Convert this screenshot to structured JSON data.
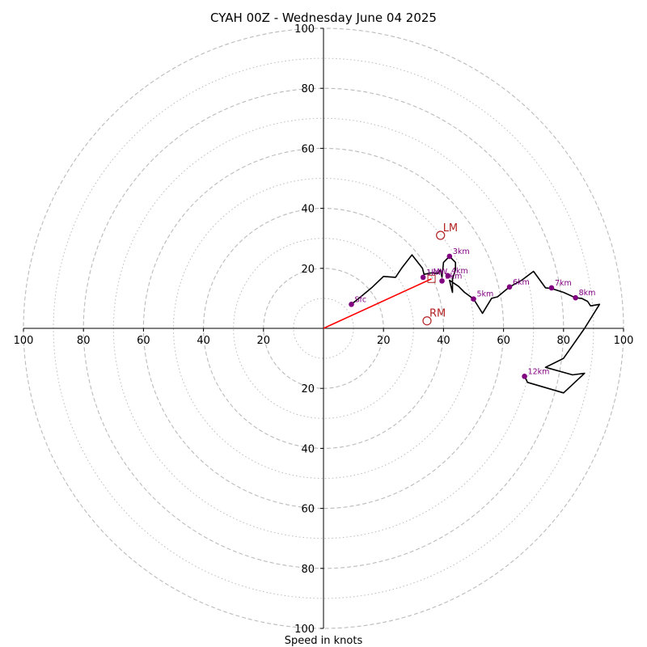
{
  "chart_data": {
    "type": "hodograph",
    "title": "CYAH 00Z - Wednesday June 04 2025",
    "xlabel": "Speed in knots",
    "axis_range": [
      -100,
      100
    ],
    "ring_major": [
      20,
      40,
      60,
      80,
      100
    ],
    "ring_minor": [
      10,
      30,
      50,
      70,
      90
    ],
    "tick_values": [
      20,
      40,
      60,
      80,
      100
    ],
    "grid": true,
    "trace": [
      [
        9.3,
        8.0
      ],
      [
        12.0,
        10.2
      ],
      [
        16.0,
        13.5
      ],
      [
        20.0,
        17.3
      ],
      [
        24.0,
        17.0
      ],
      [
        26.0,
        20.0
      ],
      [
        29.5,
        24.5
      ],
      [
        33.0,
        20.0
      ],
      [
        33.5,
        18.0
      ],
      [
        36.0,
        18.5
      ],
      [
        38.0,
        18.3
      ],
      [
        39.0,
        19.5
      ],
      [
        39.5,
        17.0
      ],
      [
        40.0,
        22.0
      ],
      [
        42.0,
        24.0
      ],
      [
        44.0,
        22.0
      ],
      [
        44.0,
        19.5
      ],
      [
        43.0,
        16.5
      ],
      [
        43.0,
        12.0
      ],
      [
        42.0,
        16.0
      ],
      [
        45.0,
        14.0
      ],
      [
        47.0,
        12.0
      ],
      [
        50.0,
        9.8
      ],
      [
        53.0,
        5.0
      ],
      [
        56.0,
        10.0
      ],
      [
        58.0,
        10.5
      ],
      [
        62.0,
        13.8
      ],
      [
        66.0,
        16.0
      ],
      [
        70.0,
        19.0
      ],
      [
        74.0,
        13.5
      ],
      [
        76.0,
        13.3
      ],
      [
        80.0,
        12.0
      ],
      [
        84.0,
        10.2
      ],
      [
        86.0,
        10.0
      ],
      [
        88.0,
        9.0
      ],
      [
        89.0,
        7.5
      ],
      [
        92.0,
        8.0
      ],
      [
        87.0,
        0.0
      ],
      [
        80.0,
        -10.0
      ],
      [
        74.0,
        -13.0
      ],
      [
        83.0,
        -15.5
      ],
      [
        87.0,
        -15.0
      ],
      [
        80.0,
        -21.5
      ],
      [
        68.0,
        -18.0
      ],
      [
        67.0,
        -16.0
      ]
    ],
    "height_markers": [
      {
        "label": "Sfc",
        "u": 9.3,
        "v": 8.0
      },
      {
        "label": "1km",
        "u": 33.2,
        "v": 17.0
      },
      {
        "label": "2km",
        "u": 39.5,
        "v": 15.8
      },
      {
        "label": "3km",
        "u": 42.0,
        "v": 24.0
      },
      {
        "label": "4km",
        "u": 41.5,
        "v": 17.5
      },
      {
        "label": "5km",
        "u": 50.0,
        "v": 9.8
      },
      {
        "label": "6km",
        "u": 62.0,
        "v": 13.8
      },
      {
        "label": "7km",
        "u": 76.0,
        "v": 13.5
      },
      {
        "label": "8km",
        "u": 84.0,
        "v": 10.2
      },
      {
        "label": "12km",
        "u": 67.0,
        "v": -16.0
      }
    ],
    "storm_motion": {
      "u": 36.0,
      "v": 16.5
    },
    "mean_wind_label": "MW",
    "bunkers": [
      {
        "label": "LM",
        "u": 39.0,
        "v": 31.0
      },
      {
        "label": "RM",
        "u": 34.5,
        "v": 2.5
      }
    ],
    "colors": {
      "trace": "#000000",
      "markers": "#800080",
      "storm_vector": "#ff0000",
      "bunkers": "#b22222",
      "grid": "#bbbbbb"
    }
  }
}
